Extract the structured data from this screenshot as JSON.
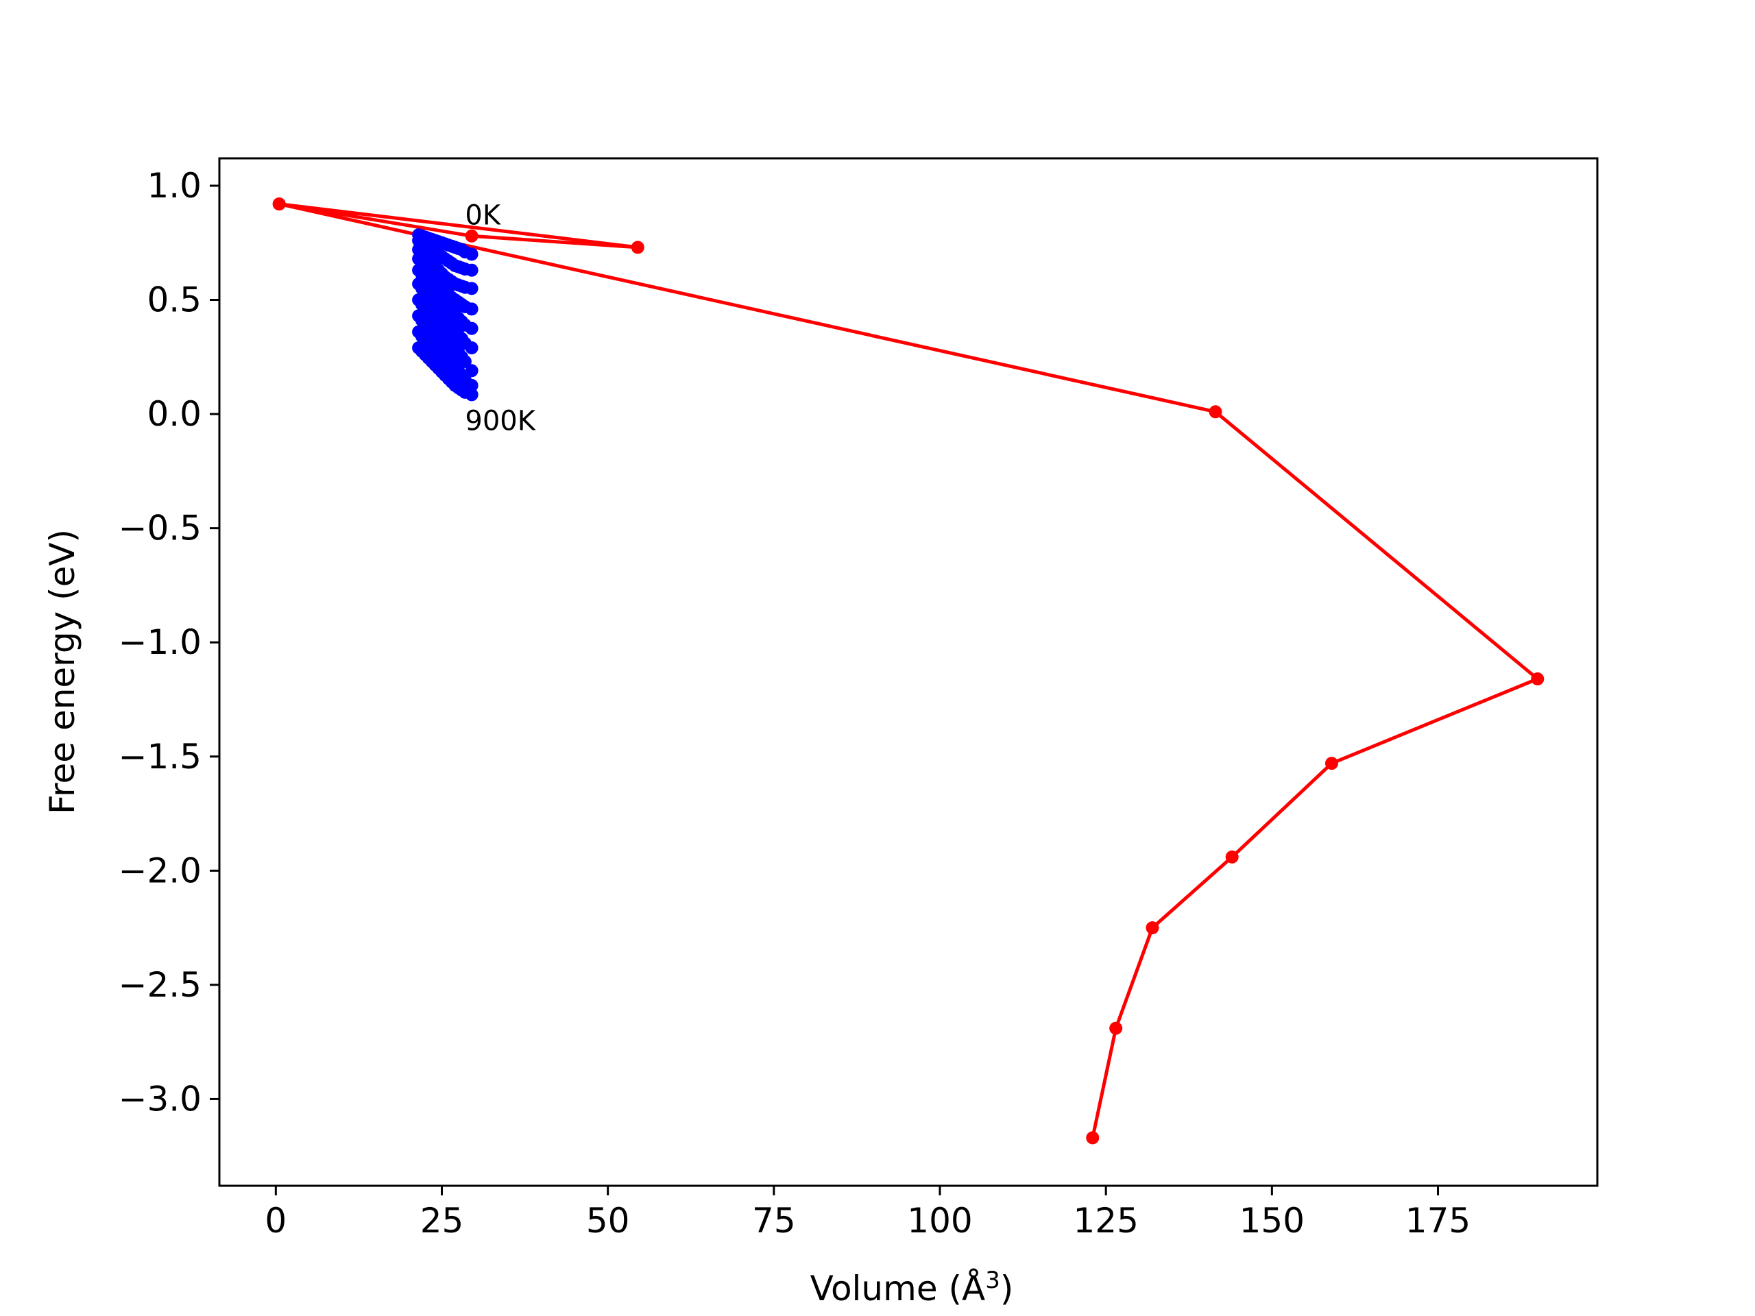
{
  "chart_data": {
    "type": "line",
    "title": "",
    "xlabel": "Volume (Å",
    "xlabel_sup": "3",
    "xlabel_close": ")",
    "ylabel": "Free energy (eV)",
    "xlim": [
      -8.5,
      199
    ],
    "ylim": [
      -3.38,
      1.12
    ],
    "xticks": [
      0,
      25,
      50,
      75,
      100,
      125,
      150,
      175
    ],
    "yticks": [
      1.0,
      0.5,
      0.0,
      -0.5,
      -1.0,
      -1.5,
      -2.0,
      -2.5,
      -3.0
    ],
    "xtick_labels": [
      "0",
      "25",
      "50",
      "75",
      "100",
      "125",
      "150",
      "175"
    ],
    "ytick_labels": [
      "1.0",
      "0.5",
      "0.0",
      "−0.5",
      "−1.0",
      "−1.5",
      "−2.0",
      "−2.5",
      "−3.0"
    ],
    "grid": false,
    "annotations": [
      {
        "text": "0K",
        "x": 28.5,
        "y": 0.83
      },
      {
        "text": "900K",
        "x": 28.5,
        "y": -0.07
      }
    ],
    "series": [
      {
        "color": "#ff0000",
        "style": "line-with-markers",
        "x": [
          0.5,
          54.5,
          29.5,
          0.5,
          141.5,
          190.0,
          159.0,
          144.0,
          132.0,
          126.5,
          123.0
        ],
        "y": [
          0.92,
          0.73,
          0.78,
          0.92,
          0.01,
          -1.16,
          -1.53,
          -1.94,
          -2.25,
          -2.69,
          -3.17
        ]
      },
      {
        "color": "#0000ff",
        "style": "line-with-markers",
        "x": [
          21.5,
          22.0,
          22.5,
          23.0,
          23.5,
          24.0,
          24.5,
          25.0,
          25.5,
          26.0,
          26.5,
          27.0,
          27.5,
          28.0,
          28.5,
          29.5
        ],
        "y": [
          0.785,
          0.78,
          0.775,
          0.77,
          0.765,
          0.76,
          0.755,
          0.75,
          0.745,
          0.74,
          0.735,
          0.73,
          0.725,
          0.72,
          0.71,
          0.7
        ]
      },
      {
        "color": "#0000ff",
        "style": "line-with-markers",
        "x": [
          21.5,
          22.0,
          22.5,
          23.0,
          23.5,
          24.0,
          24.5,
          25.0,
          25.5,
          26.0,
          26.5,
          27.0,
          27.5,
          28.0,
          28.5,
          29.5
        ],
        "y": [
          0.76,
          0.75,
          0.74,
          0.73,
          0.72,
          0.71,
          0.7,
          0.69,
          0.68,
          0.67,
          0.66,
          0.65,
          0.645,
          0.64,
          0.635,
          0.63
        ]
      },
      {
        "color": "#0000ff",
        "style": "line-with-markers",
        "x": [
          21.5,
          22.0,
          22.5,
          23.0,
          23.5,
          24.0,
          24.5,
          25.0,
          25.5,
          26.0,
          26.5,
          27.0,
          27.5,
          28.0,
          28.5,
          29.5
        ],
        "y": [
          0.72,
          0.705,
          0.69,
          0.675,
          0.66,
          0.645,
          0.63,
          0.615,
          0.6,
          0.59,
          0.58,
          0.57,
          0.565,
          0.56,
          0.555,
          0.55
        ]
      },
      {
        "color": "#0000ff",
        "style": "line-with-markers",
        "x": [
          21.5,
          22.0,
          22.5,
          23.0,
          23.5,
          24.0,
          24.5,
          25.0,
          25.5,
          26.0,
          26.5,
          27.0,
          27.5,
          28.0,
          28.5,
          29.5
        ],
        "y": [
          0.68,
          0.66,
          0.64,
          0.62,
          0.6,
          0.585,
          0.57,
          0.555,
          0.54,
          0.525,
          0.51,
          0.5,
          0.49,
          0.48,
          0.47,
          0.46
        ]
      },
      {
        "color": "#0000ff",
        "style": "line-with-markers",
        "x": [
          21.5,
          22.0,
          22.5,
          23.0,
          23.5,
          24.0,
          24.5,
          25.0,
          25.5,
          26.0,
          26.5,
          27.0,
          27.5,
          28.0,
          28.5,
          29.5
        ],
        "y": [
          0.63,
          0.61,
          0.59,
          0.57,
          0.55,
          0.53,
          0.51,
          0.495,
          0.48,
          0.465,
          0.45,
          0.435,
          0.42,
          0.405,
          0.39,
          0.375
        ]
      },
      {
        "color": "#0000ff",
        "style": "line-with-markers",
        "x": [
          21.5,
          22.0,
          22.5,
          23.0,
          23.5,
          24.0,
          24.5,
          25.0,
          25.5,
          26.0,
          26.5,
          27.0,
          27.5,
          28.0,
          28.5,
          29.5
        ],
        "y": [
          0.57,
          0.55,
          0.53,
          0.51,
          0.49,
          0.47,
          0.45,
          0.43,
          0.41,
          0.395,
          0.38,
          0.36,
          0.345,
          0.33,
          0.31,
          0.29
        ]
      },
      {
        "color": "#0000ff",
        "style": "line-with-markers",
        "x": [
          21.5,
          22.0,
          22.5,
          23.0,
          23.5,
          24.0,
          24.5,
          25.0,
          25.5,
          26.0,
          26.5,
          27.0,
          27.5,
          28.0,
          28.5,
          29.5
        ],
        "y": [
          0.5,
          0.48,
          0.46,
          0.44,
          0.42,
          0.4,
          0.38,
          0.36,
          0.34,
          0.32,
          0.3,
          0.285,
          0.27,
          0.25,
          0.23,
          0.19
        ]
      },
      {
        "color": "#0000ff",
        "style": "line-with-markers",
        "x": [
          21.5,
          22.0,
          22.5,
          23.0,
          23.5,
          24.0,
          24.5,
          25.0,
          25.5,
          26.0,
          26.5,
          27.0,
          27.5,
          28.0,
          28.5,
          29.5
        ],
        "y": [
          0.43,
          0.41,
          0.39,
          0.37,
          0.35,
          0.33,
          0.31,
          0.29,
          0.27,
          0.25,
          0.23,
          0.21,
          0.19,
          0.17,
          0.15,
          0.125
        ]
      },
      {
        "color": "#0000ff",
        "style": "line-with-markers",
        "x": [
          21.5,
          22.0,
          22.5,
          23.0,
          23.5,
          24.0,
          24.5,
          25.0,
          25.5,
          26.0,
          26.5,
          27.0,
          27.5,
          28.0,
          28.5,
          29.5
        ],
        "y": [
          0.36,
          0.34,
          0.32,
          0.3,
          0.28,
          0.26,
          0.24,
          0.22,
          0.2,
          0.18,
          0.16,
          0.145,
          0.13,
          0.115,
          0.1,
          0.085
        ]
      },
      {
        "color": "#0000ff",
        "style": "line-with-markers",
        "x": [
          21.5,
          22.0,
          22.5,
          23.0,
          23.5,
          24.0,
          24.5,
          25.0,
          25.5,
          26.0,
          26.5,
          27.0,
          27.5,
          28.0,
          28.5,
          29.5
        ],
        "y": [
          0.29,
          0.275,
          0.26,
          0.245,
          0.23,
          0.215,
          0.2,
          0.185,
          0.17,
          0.155,
          0.14,
          0.125,
          0.115,
          0.105,
          0.095,
          0.085
        ]
      }
    ]
  }
}
